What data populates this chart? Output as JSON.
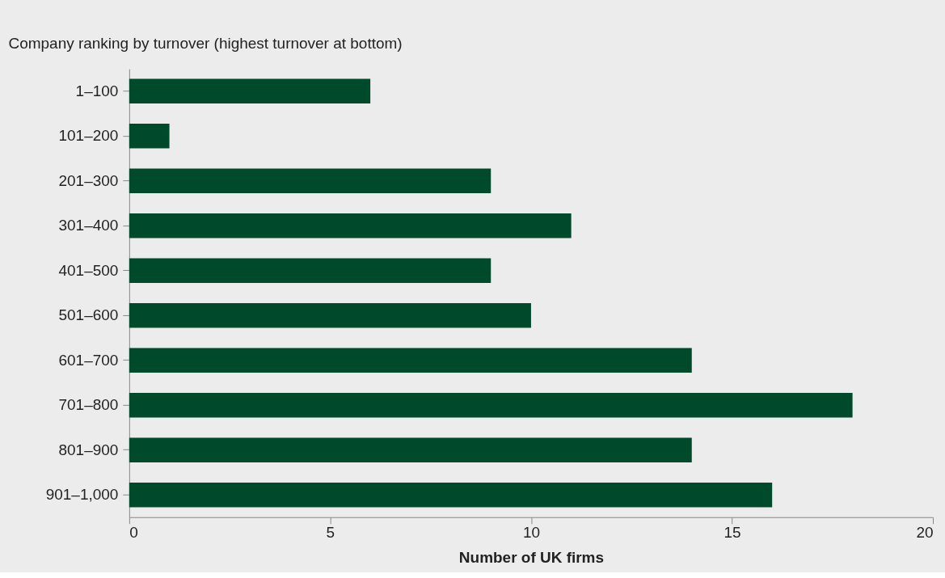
{
  "chart_data": {
    "type": "bar",
    "orientation": "horizontal",
    "ylabel": "Company ranking by turnover (highest turnover at bottom)",
    "xlabel": "Number of UK firms",
    "categories": [
      "1–100",
      "101–200",
      "201–300",
      "301–400",
      "401–500",
      "501–600",
      "601–700",
      "701–800",
      "801–900",
      "901–1,000"
    ],
    "values": [
      6,
      1,
      9,
      11,
      9,
      10,
      14,
      18,
      14,
      16
    ],
    "color": "#004a2c",
    "xlim": [
      0,
      20
    ],
    "xticks": [
      0,
      5,
      10,
      15,
      20
    ],
    "grid": false
  }
}
